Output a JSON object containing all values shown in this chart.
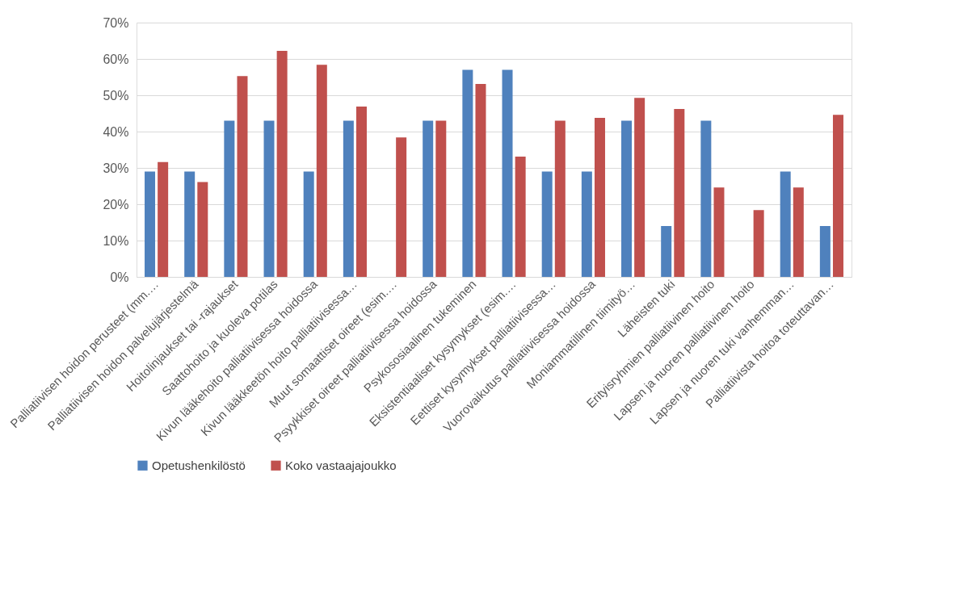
{
  "chart_data": {
    "type": "bar",
    "categories": [
      "Palliatiivisen hoidon perusteet (mm.…",
      "Palliatiivisen hoidon palvelujärjestelmä",
      "Hoitolinjaukset tai -rajaukset",
      "Saattohoito ja kuoleva potilas",
      "Kivun lääkehoito palliatiivisessa hoidossa",
      "Kivun lääkkeetön hoito palliatiivisessa…",
      "Muut somaattiset oireet (esim.…",
      "Psyykkiset oireet palliatiivisessa hoidossa",
      "Psykososiaalinen tukeminen",
      "Eksistentiaaliset kysymykset (esim.…",
      "Eettiset kysymykset palliatiivisessa…",
      "Vuorovaikutus palliatiivisessa hoidossa",
      "Moniammatillinen tiimityö…",
      "Läheisten tuki",
      "Erityisryhmien palliatiivinen hoito",
      "Lapsen ja nuoren palliatiivinen hoito",
      "Lapsen ja nuoren tuki vanhemman…",
      "Palliatiivista hoitoa toteuttavan…"
    ],
    "series": [
      {
        "name": "Opetushenkilöstö",
        "color": "#4f81bd",
        "values": [
          29,
          29,
          43,
          43,
          29,
          43,
          0,
          43,
          57,
          57,
          29,
          29,
          43,
          14,
          43,
          0,
          29,
          14
        ]
      },
      {
        "name": "Koko vastaajajoukko",
        "color": "#c0504d",
        "values": [
          31.6,
          26.1,
          55.3,
          62.2,
          58.4,
          46.9,
          38.4,
          43,
          53.1,
          33.1,
          43,
          43.8,
          49.3,
          46.2,
          24.6,
          18.4,
          24.6,
          44.6
        ]
      }
    ],
    "ylim": [
      0,
      70
    ],
    "yticks": [
      {
        "value": 0,
        "label": "0%"
      },
      {
        "value": 10,
        "label": "10%"
      },
      {
        "value": 20,
        "label": "20%"
      },
      {
        "value": 30,
        "label": "30%"
      },
      {
        "value": 40,
        "label": "40%"
      },
      {
        "value": 50,
        "label": "50%"
      },
      {
        "value": 60,
        "label": "60%"
      },
      {
        "value": 70,
        "label": "70%"
      }
    ],
    "grid": "y",
    "legend": "bottom"
  }
}
